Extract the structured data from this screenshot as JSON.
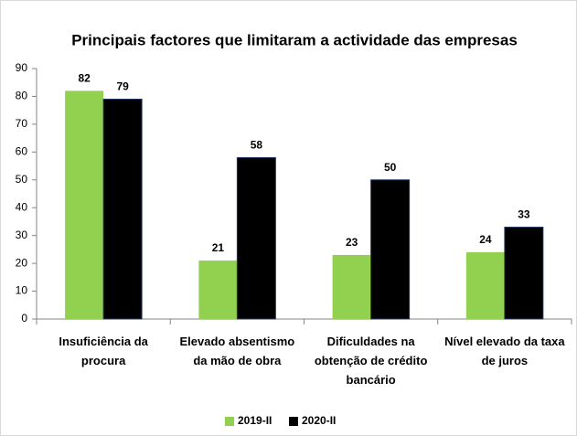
{
  "chart_data": {
    "type": "bar",
    "title": "Principais factores que limitaram a actividade das empresas",
    "categories": [
      [
        "Insuficiência da",
        "procura"
      ],
      [
        "Elevado absentismo",
        "da mão de obra"
      ],
      [
        "Dificuldades na",
        "obtenção de crédito",
        "bancário"
      ],
      [
        "Nível elevado da taxa",
        "de juros"
      ]
    ],
    "series": [
      {
        "name": "2019-II",
        "color": "#92d050",
        "values": [
          82,
          21,
          23,
          24
        ]
      },
      {
        "name": "2020-II",
        "color": "#000000",
        "values": [
          79,
          58,
          50,
          33
        ]
      }
    ],
    "ylim": [
      0,
      90
    ],
    "yticks": [
      0,
      10,
      20,
      30,
      40,
      50,
      60,
      70,
      80,
      90
    ],
    "grid": false,
    "legend": "bottom"
  }
}
